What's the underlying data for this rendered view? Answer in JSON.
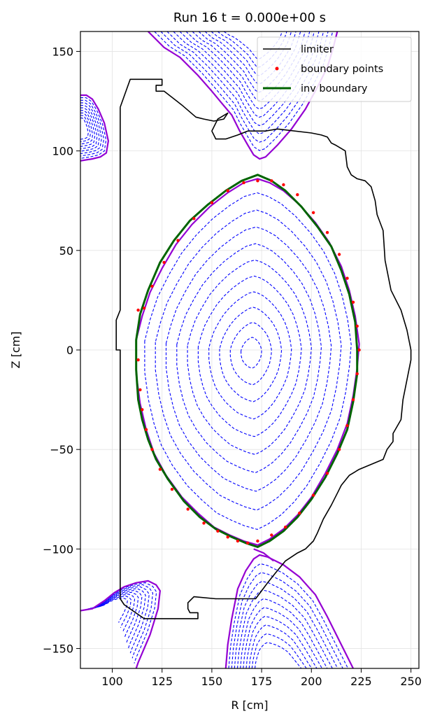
{
  "chart_data": {
    "type": "line",
    "title": "Run 16  t = 0.000e+00 s",
    "xlabel": "R [cm]",
    "ylabel": "Z [cm]",
    "xlim": [
      84,
      254
    ],
    "ylim": [
      -160,
      160
    ],
    "xticks": [
      100,
      125,
      150,
      175,
      200,
      225,
      250
    ],
    "yticks": [
      -150,
      -100,
      -50,
      0,
      50,
      100,
      150
    ],
    "xtick_labels": [
      "100",
      "125",
      "150",
      "175",
      "200",
      "225",
      "250"
    ],
    "ytick_labels": [
      "−150",
      "−100",
      "−50",
      "0",
      "50",
      "100",
      "150"
    ],
    "grid": true,
    "legend_position": "top-right",
    "legend": [
      {
        "label": "limiter",
        "color": "#000000",
        "style": "line"
      },
      {
        "label": "boundary points",
        "color": "#ff0000",
        "style": "marker"
      },
      {
        "label": "inv boundary",
        "color": "#006400",
        "style": "line"
      }
    ],
    "colors": {
      "limiter": "#000000",
      "flux": "#0000ff",
      "separatrix": "#9400d3",
      "boundary_points": "#ff0000",
      "inv_boundary": "#006400"
    },
    "limiter": [
      [
        104,
        122
      ],
      [
        109,
        136
      ],
      [
        116,
        136
      ],
      [
        120,
        136
      ],
      [
        125,
        136
      ],
      [
        125,
        133
      ],
      [
        122,
        133
      ],
      [
        122,
        130
      ],
      [
        126,
        130
      ],
      [
        135,
        123
      ],
      [
        142,
        117
      ],
      [
        146,
        116
      ],
      [
        151,
        115
      ],
      [
        156,
        116
      ],
      [
        158,
        119
      ],
      [
        153,
        116
      ],
      [
        150,
        110
      ],
      [
        152,
        106
      ],
      [
        157,
        106
      ],
      [
        163,
        108
      ],
      [
        168,
        110
      ],
      [
        177,
        110
      ],
      [
        183,
        111
      ],
      [
        200,
        109
      ],
      [
        205,
        108
      ],
      [
        208,
        107
      ],
      [
        210,
        104
      ],
      [
        212,
        103
      ],
      [
        217,
        100
      ],
      [
        218,
        92
      ],
      [
        220,
        88
      ],
      [
        223,
        86
      ],
      [
        227,
        85
      ],
      [
        230,
        82
      ],
      [
        232,
        75
      ],
      [
        233,
        68
      ],
      [
        236,
        60
      ],
      [
        237,
        45
      ],
      [
        240,
        30
      ],
      [
        245,
        20
      ],
      [
        248,
        10
      ],
      [
        250,
        0
      ],
      [
        250,
        -5
      ],
      [
        248,
        -15
      ],
      [
        246,
        -25
      ],
      [
        245,
        -35
      ],
      [
        241,
        -42
      ],
      [
        241,
        -46
      ],
      [
        238,
        -50
      ],
      [
        236,
        -55
      ],
      [
        224,
        -60
      ],
      [
        219,
        -63
      ],
      [
        215,
        -68
      ],
      [
        213,
        -72
      ],
      [
        210,
        -78
      ],
      [
        206,
        -85
      ],
      [
        203,
        -92
      ],
      [
        201,
        -96
      ],
      [
        197,
        -100
      ],
      [
        193,
        -102
      ],
      [
        187,
        -106
      ],
      [
        182,
        -112
      ],
      [
        178,
        -117
      ],
      [
        172,
        -125
      ],
      [
        152,
        -125
      ],
      [
        141,
        -124
      ],
      [
        138,
        -127
      ],
      [
        138,
        -130
      ],
      [
        139,
        -132
      ],
      [
        143,
        -132
      ],
      [
        143,
        -135
      ],
      [
        124,
        -135
      ],
      [
        116,
        -135
      ],
      [
        106,
        -128
      ],
      [
        104,
        -125
      ],
      [
        104,
        0
      ],
      [
        102,
        0
      ],
      [
        102,
        15
      ],
      [
        104,
        20
      ],
      [
        104,
        122
      ]
    ],
    "boundary_points": [
      [
        113,
        20
      ],
      [
        113,
        -5
      ],
      [
        114,
        -20
      ],
      [
        115,
        -30
      ],
      [
        117,
        -40
      ],
      [
        120,
        -50
      ],
      [
        124,
        -60
      ],
      [
        130,
        -70
      ],
      [
        138,
        -80
      ],
      [
        146,
        -87
      ],
      [
        153,
        -91
      ],
      [
        158,
        -94
      ],
      [
        163,
        -96
      ],
      [
        168,
        -97
      ],
      [
        173,
        -96
      ],
      [
        180,
        -93
      ],
      [
        187,
        -89
      ],
      [
        194,
        -82
      ],
      [
        201,
        -73
      ],
      [
        208,
        -62
      ],
      [
        214,
        -50
      ],
      [
        218,
        -38
      ],
      [
        221,
        -25
      ],
      [
        223,
        -12
      ],
      [
        224,
        0
      ],
      [
        223,
        12
      ],
      [
        221,
        24
      ],
      [
        218,
        36
      ],
      [
        214,
        48
      ],
      [
        208,
        59
      ],
      [
        201,
        69
      ],
      [
        193,
        78
      ],
      [
        186,
        83
      ],
      [
        180,
        85
      ],
      [
        173,
        85
      ],
      [
        166,
        84
      ],
      [
        158,
        80
      ],
      [
        150,
        74
      ],
      [
        141,
        66
      ],
      [
        133,
        55
      ],
      [
        126,
        44
      ],
      [
        120,
        32
      ],
      [
        116,
        21
      ]
    ],
    "inv_boundary": [
      [
        112,
        5
      ],
      [
        112,
        -10
      ],
      [
        113,
        -25
      ],
      [
        115,
        -35
      ],
      [
        118,
        -45
      ],
      [
        122,
        -55
      ],
      [
        128,
        -65
      ],
      [
        136,
        -76
      ],
      [
        144,
        -84
      ],
      [
        152,
        -90
      ],
      [
        160,
        -94
      ],
      [
        167,
        -97
      ],
      [
        173,
        -99
      ],
      [
        179,
        -96
      ],
      [
        186,
        -91
      ],
      [
        193,
        -84
      ],
      [
        200,
        -75
      ],
      [
        207,
        -64
      ],
      [
        213,
        -52
      ],
      [
        218,
        -40
      ],
      [
        221,
        -26
      ],
      [
        223,
        -12
      ],
      [
        223,
        0
      ],
      [
        222,
        14
      ],
      [
        219,
        28
      ],
      [
        215,
        40
      ],
      [
        210,
        52
      ],
      [
        203,
        62
      ],
      [
        195,
        72
      ],
      [
        187,
        80
      ],
      [
        180,
        85
      ],
      [
        173,
        88
      ],
      [
        165,
        85
      ],
      [
        157,
        80
      ],
      [
        148,
        73
      ],
      [
        139,
        65
      ],
      [
        131,
        55
      ],
      [
        124,
        44
      ],
      [
        118,
        30
      ],
      [
        114,
        18
      ],
      [
        112,
        5
      ]
    ],
    "separatrix_core": [
      [
        112,
        5
      ],
      [
        112,
        -12
      ],
      [
        114,
        -27
      ],
      [
        117,
        -40
      ],
      [
        121,
        -52
      ],
      [
        127,
        -63
      ],
      [
        135,
        -74
      ],
      [
        143,
        -82
      ],
      [
        151,
        -89
      ],
      [
        159,
        -93
      ],
      [
        166,
        -96
      ],
      [
        173,
        -98
      ],
      [
        179,
        -95
      ],
      [
        186,
        -90
      ],
      [
        193,
        -83
      ],
      [
        200,
        -74
      ],
      [
        207,
        -62
      ],
      [
        213,
        -50
      ],
      [
        218,
        -37
      ],
      [
        221,
        -23
      ],
      [
        223,
        -9
      ],
      [
        224,
        3
      ],
      [
        222,
        17
      ],
      [
        219,
        30
      ],
      [
        215,
        42
      ],
      [
        209,
        54
      ],
      [
        202,
        64
      ],
      [
        194,
        73
      ],
      [
        186,
        80
      ],
      [
        179,
        84
      ],
      [
        173,
        86
      ],
      [
        166,
        84
      ],
      [
        158,
        79
      ],
      [
        149,
        72
      ],
      [
        140,
        63
      ],
      [
        132,
        53
      ],
      [
        125,
        41
      ],
      [
        119,
        29
      ],
      [
        115,
        17
      ],
      [
        112,
        5
      ]
    ],
    "separatrix_top": [
      [
        118,
        160
      ],
      [
        126,
        152
      ],
      [
        134,
        147
      ],
      [
        143,
        138
      ],
      [
        150,
        130
      ],
      [
        155,
        124
      ],
      [
        160,
        118
      ],
      [
        164,
        110
      ],
      [
        168,
        103
      ],
      [
        171,
        98
      ],
      [
        174,
        96
      ],
      [
        177,
        97
      ],
      [
        183,
        103
      ],
      [
        190,
        111
      ],
      [
        197,
        121
      ],
      [
        203,
        132
      ],
      [
        208,
        142
      ],
      [
        211,
        152
      ],
      [
        213,
        160
      ]
    ],
    "separatrix_bottom": [
      [
        157,
        -160
      ],
      [
        158,
        -148
      ],
      [
        160,
        -135
      ],
      [
        163,
        -120
      ],
      [
        167,
        -111
      ],
      [
        171,
        -105
      ],
      [
        174,
        -103
      ],
      [
        178,
        -104
      ],
      [
        186,
        -108
      ],
      [
        194,
        -114
      ],
      [
        202,
        -123
      ],
      [
        208,
        -134
      ],
      [
        214,
        -146
      ],
      [
        221,
        -160
      ]
    ],
    "separatrix_bottom_inner": [
      [
        171,
        -100
      ],
      [
        176,
        -102
      ],
      [
        181,
        -106
      ]
    ],
    "separatrix_upper_left": [
      [
        84,
        128
      ],
      [
        87,
        128
      ],
      [
        90,
        126
      ],
      [
        93,
        121
      ],
      [
        96,
        114
      ],
      [
        98,
        105
      ],
      [
        97,
        99
      ],
      [
        94,
        97
      ],
      [
        90,
        96
      ],
      [
        84,
        95
      ]
    ],
    "separatrix_lower_left": [
      [
        84,
        -131
      ],
      [
        90,
        -130
      ],
      [
        96,
        -126
      ],
      [
        101,
        -122
      ],
      [
        106,
        -119
      ],
      [
        112,
        -117
      ],
      [
        118,
        -116
      ],
      [
        122,
        -118
      ],
      [
        124,
        -121
      ],
      [
        123,
        -130
      ],
      [
        119,
        -143
      ],
      [
        113,
        -157
      ],
      [
        112,
        -160
      ]
    ],
    "flux_core_count": 10,
    "flux_top_count": 12,
    "flux_bottom_count": 10,
    "flux_upper_left_count": 9,
    "flux_lower_left_count": 9
  }
}
